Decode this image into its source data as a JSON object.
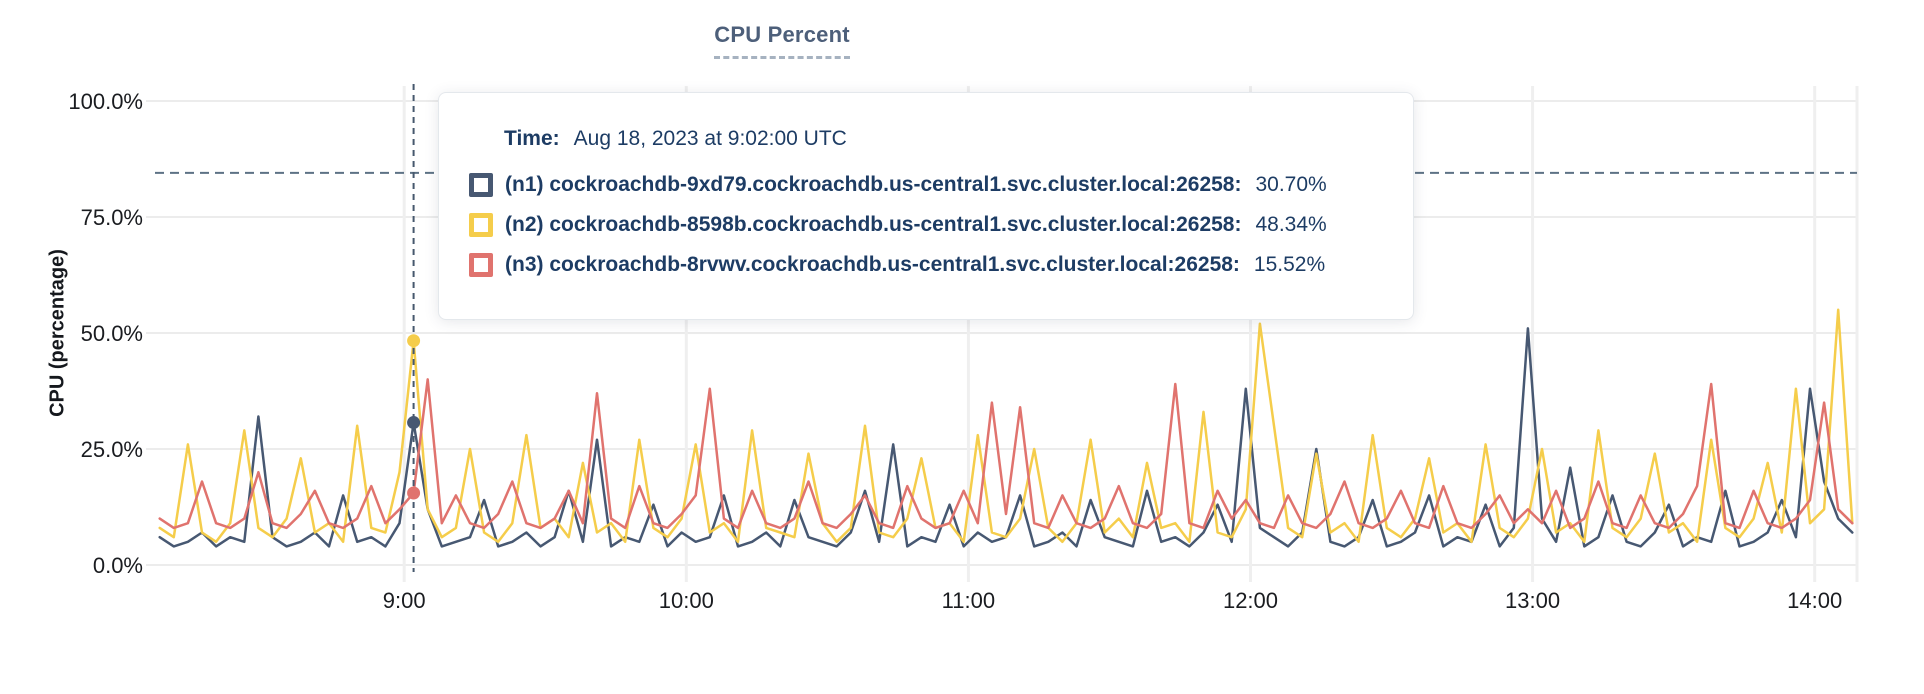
{
  "tooltip": {
    "time_label": "Time:",
    "time_value": "Aug 18, 2023 at 9:02:00 UTC",
    "rows": [
      {
        "label": "(n1) cockroachdb-9xd79.cockroachdb.us-central1.svc.cluster.local:26258:",
        "value": "30.70%",
        "color": "#475872"
      },
      {
        "label": "(n2) cockroachdb-8598b.cockroachdb.us-central1.svc.cluster.local:26258:",
        "value": "48.34%",
        "color": "#F5CD4B"
      },
      {
        "label": "(n3) cockroachdb-8rvwv.cockroachdb.us-central1.svc.cluster.local:26258:",
        "value": "15.52%",
        "color": "#E0736E"
      }
    ]
  },
  "chart_data": {
    "type": "line",
    "title": "CPU Percent",
    "xlabel": "",
    "ylabel": "CPU (percentage)",
    "ylim": [
      0,
      100
    ],
    "grid": true,
    "legend_position": "hover-tooltip",
    "y_ticks": [
      {
        "value": 0,
        "label": "0.0%"
      },
      {
        "value": 25,
        "label": "25.0%"
      },
      {
        "value": 50,
        "label": "50.0%"
      },
      {
        "value": 75,
        "label": "75.0%"
      },
      {
        "value": 100,
        "label": "100.0%"
      }
    ],
    "x_ticks": [
      {
        "minute": 540,
        "label": "9:00"
      },
      {
        "minute": 600,
        "label": "10:00"
      },
      {
        "minute": 660,
        "label": "11:00"
      },
      {
        "minute": 720,
        "label": "12:00"
      },
      {
        "minute": 780,
        "label": "13:00"
      },
      {
        "minute": 840,
        "label": "14:00"
      }
    ],
    "x_domain_minutes": [
      487,
      849
    ],
    "threshold_line": {
      "value": 84.5,
      "style": "dashed",
      "color": "#5d7285"
    },
    "hover": {
      "minute": 542,
      "time": "Aug 18, 2023 at 9:02:00 UTC",
      "points": [
        {
          "series": "n1",
          "value": 30.7
        },
        {
          "series": "n2",
          "value": 48.34
        },
        {
          "series": "n3",
          "value": 15.52
        }
      ]
    },
    "sample_start_minute": 488,
    "sample_step_minutes": 3,
    "series": [
      {
        "id": "n1",
        "name": "(n1) cockroachdb-9xd79.cockroachdb.us-central1.svc.cluster.local:26258",
        "color": "#475872",
        "values": [
          6,
          4,
          5,
          7,
          4,
          6,
          5,
          32,
          6,
          4,
          5,
          7,
          4,
          15,
          5,
          6,
          4,
          9,
          30.7,
          12,
          4,
          5,
          6,
          14,
          4,
          5,
          7,
          4,
          6,
          16,
          5,
          27,
          4,
          6,
          5,
          13,
          4,
          7,
          5,
          6,
          15,
          4,
          5,
          7,
          4,
          14,
          6,
          5,
          4,
          7,
          16,
          5,
          26,
          4,
          6,
          5,
          13,
          4,
          7,
          5,
          6,
          15,
          4,
          5,
          7,
          4,
          14,
          6,
          5,
          4,
          16,
          5,
          6,
          4,
          7,
          13,
          5,
          38,
          8,
          6,
          4,
          7,
          25,
          5,
          4,
          6,
          14,
          4,
          5,
          7,
          15,
          4,
          6,
          5,
          13,
          4,
          8,
          51,
          10,
          5,
          21,
          4,
          6,
          15,
          5,
          4,
          7,
          13,
          4,
          6,
          5,
          16,
          4,
          5,
          7,
          14,
          6,
          38,
          18,
          10,
          7
        ]
      },
      {
        "id": "n2",
        "name": "(n2) cockroachdb-8598b.cockroachdb.us-central1.svc.cluster.local:26258",
        "color": "#F5CD4B",
        "values": [
          8,
          6,
          26,
          7,
          5,
          9,
          29,
          8,
          6,
          10,
          23,
          7,
          9,
          5,
          30,
          8,
          7,
          20,
          48.34,
          12,
          6,
          8,
          25,
          7,
          5,
          9,
          28,
          8,
          10,
          6,
          22,
          7,
          9,
          5,
          27,
          8,
          6,
          10,
          26,
          7,
          9,
          5,
          29,
          8,
          7,
          6,
          24,
          9,
          5,
          8,
          30,
          7,
          6,
          10,
          23,
          8,
          9,
          5,
          28,
          7,
          6,
          10,
          25,
          8,
          5,
          9,
          27,
          7,
          10,
          6,
          22,
          8,
          9,
          5,
          33,
          7,
          6,
          12,
          52,
          30,
          8,
          6,
          24,
          7,
          9,
          5,
          28,
          8,
          6,
          10,
          23,
          7,
          9,
          5,
          26,
          8,
          6,
          10,
          25,
          7,
          9,
          5,
          29,
          8,
          6,
          10,
          24,
          7,
          9,
          5,
          27,
          8,
          6,
          10,
          22,
          7,
          38,
          9,
          12,
          55,
          9
        ]
      },
      {
        "id": "n3",
        "name": "(n3) cockroachdb-8rvwv.cockroachdb.us-central1.svc.cluster.local:26258",
        "color": "#E0736E",
        "values": [
          10,
          8,
          9,
          18,
          9,
          8,
          10,
          20,
          9,
          8,
          11,
          16,
          9,
          8,
          10,
          17,
          9,
          12,
          15.52,
          40,
          9,
          15,
          9,
          8,
          11,
          18,
          9,
          8,
          10,
          16,
          9,
          37,
          10,
          8,
          17,
          9,
          8,
          11,
          15,
          38,
          10,
          8,
          16,
          9,
          8,
          10,
          18,
          9,
          8,
          11,
          15,
          9,
          8,
          17,
          10,
          8,
          9,
          16,
          9,
          35,
          11,
          34,
          9,
          8,
          15,
          9,
          8,
          10,
          17,
          9,
          8,
          11,
          39,
          9,
          8,
          16,
          10,
          14,
          9,
          8,
          15,
          9,
          8,
          11,
          18,
          9,
          8,
          10,
          16,
          9,
          8,
          17,
          9,
          8,
          11,
          15,
          9,
          12,
          9,
          16,
          8,
          10,
          18,
          9,
          8,
          15,
          9,
          8,
          11,
          17,
          39,
          9,
          8,
          16,
          9,
          8,
          10,
          14,
          35,
          12,
          9
        ]
      }
    ]
  }
}
